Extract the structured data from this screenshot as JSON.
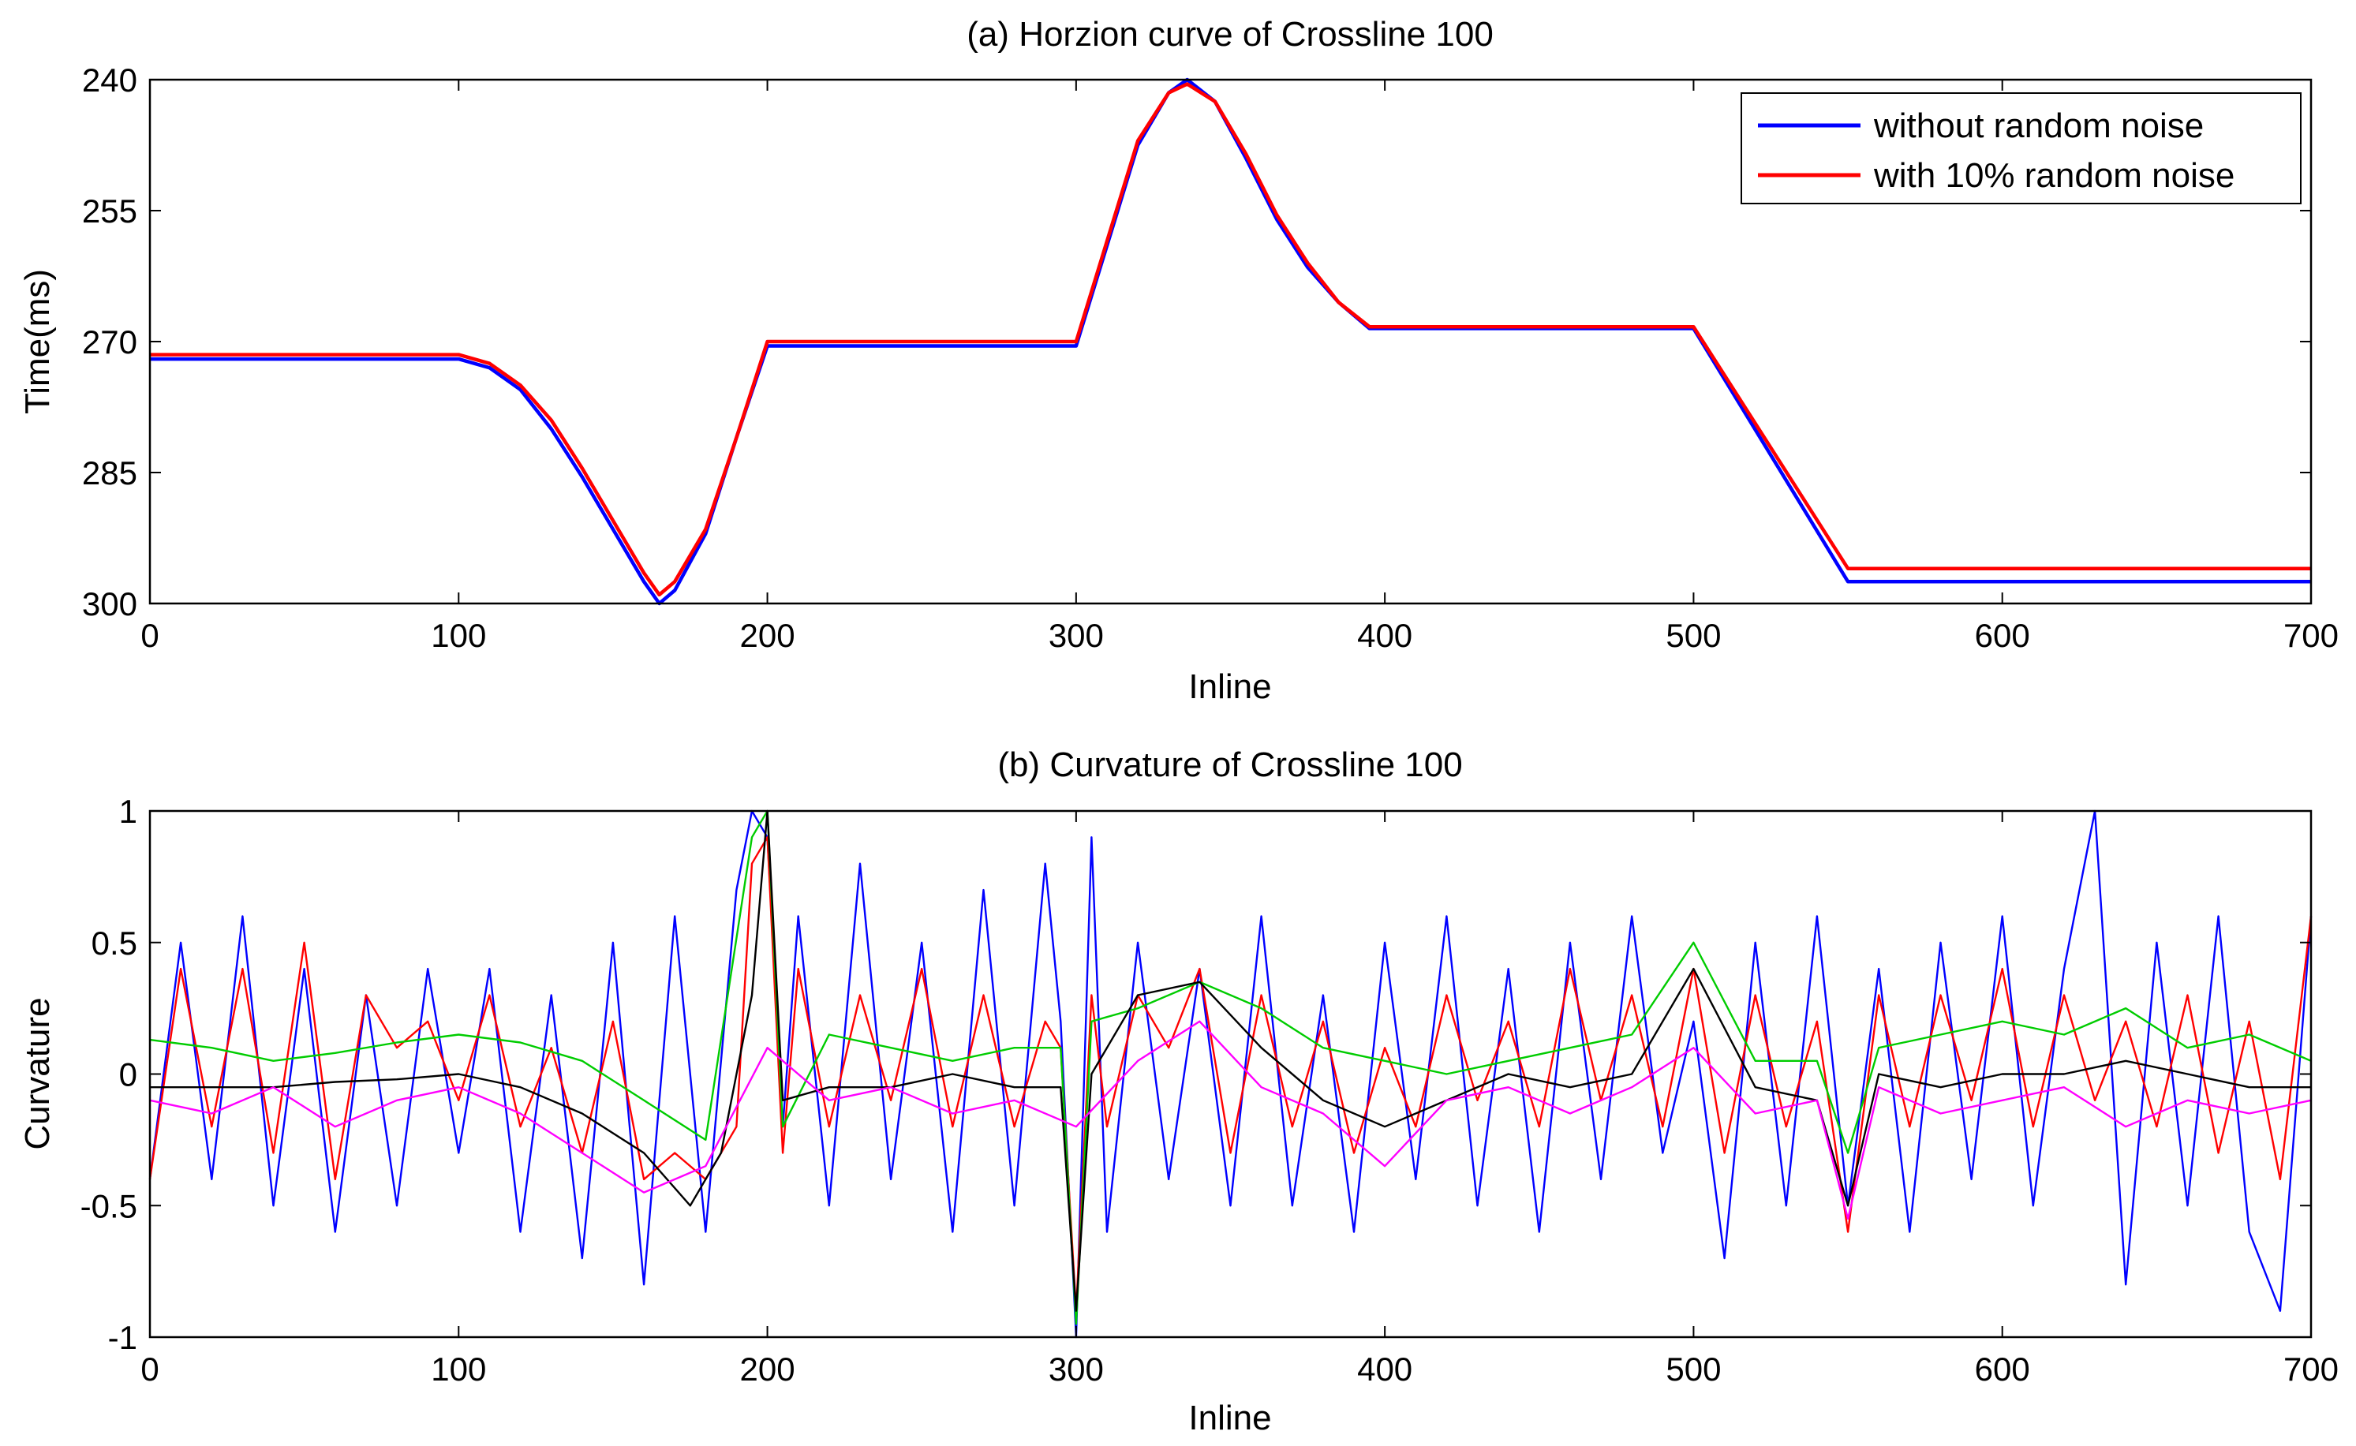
{
  "chart_data": [
    {
      "id": "a",
      "type": "line",
      "title": "(a) Horzion curve of Crossline 100",
      "xlabel": "Inline",
      "ylabel": "Time(ms)",
      "xlim": [
        0,
        700
      ],
      "ylim": [
        240,
        300
      ],
      "y_reversed": true,
      "xticks": [
        0,
        100,
        200,
        300,
        400,
        500,
        600,
        700
      ],
      "yticks": [
        240,
        255,
        270,
        285,
        300
      ],
      "legend_position": "top-right",
      "series": [
        {
          "name": "without random noise",
          "color": "#0000ff",
          "x": [
            0,
            100,
            110,
            120,
            130,
            140,
            150,
            160,
            165,
            170,
            180,
            190,
            200,
            300,
            310,
            320,
            330,
            336,
            345,
            355,
            365,
            375,
            385,
            395,
            500,
            550,
            700
          ],
          "y": [
            272,
            272,
            273,
            275.5,
            280,
            285.5,
            291.5,
            297.5,
            300,
            298.5,
            292,
            281,
            270.5,
            270.5,
            259,
            247.5,
            241.5,
            240,
            242.5,
            249,
            256,
            261.5,
            265.5,
            268.5,
            268.5,
            297.5,
            297.5
          ]
        },
        {
          "name": "with 10% random noise",
          "color": "#ff0000",
          "x": [
            0,
            100,
            110,
            120,
            130,
            140,
            150,
            160,
            165,
            170,
            180,
            190,
            200,
            300,
            310,
            320,
            330,
            336,
            345,
            355,
            365,
            375,
            385,
            395,
            500,
            550,
            700
          ],
          "y": [
            271.5,
            271.5,
            272.5,
            275,
            279,
            284.5,
            290.5,
            296.5,
            299,
            297.5,
            291.5,
            281,
            270,
            270,
            258.5,
            247,
            241.5,
            240.5,
            242.5,
            248.5,
            255.5,
            261,
            265.5,
            268.3,
            268.3,
            296,
            296
          ]
        }
      ]
    },
    {
      "id": "b",
      "type": "line",
      "title": "(b) Curvature of Crossline 100",
      "xlabel": "Inline",
      "ylabel": "Curvature",
      "xlim": [
        0,
        700
      ],
      "ylim": [
        -1,
        1
      ],
      "xticks": [
        0,
        100,
        200,
        300,
        400,
        500,
        600,
        700
      ],
      "yticks": [
        -1,
        -0.5,
        0,
        0.5,
        1
      ],
      "series": [
        {
          "name": "blue",
          "color": "#0000ff",
          "x": [
            0,
            10,
            20,
            30,
            40,
            50,
            60,
            70,
            80,
            90,
            100,
            110,
            120,
            130,
            140,
            150,
            160,
            170,
            180,
            190,
            195,
            200,
            205,
            210,
            220,
            230,
            240,
            250,
            260,
            270,
            280,
            290,
            295,
            300,
            305,
            310,
            320,
            330,
            340,
            350,
            360,
            370,
            380,
            390,
            400,
            410,
            420,
            430,
            440,
            450,
            460,
            470,
            480,
            490,
            500,
            510,
            520,
            530,
            540,
            550,
            560,
            570,
            580,
            590,
            600,
            610,
            620,
            630,
            640,
            650,
            660,
            670,
            680,
            690,
            700
          ],
          "y": [
            -0.4,
            0.5,
            -0.4,
            0.6,
            -0.5,
            0.4,
            -0.6,
            0.3,
            -0.5,
            0.4,
            -0.3,
            0.4,
            -0.6,
            0.3,
            -0.7,
            0.5,
            -0.8,
            0.6,
            -0.6,
            0.7,
            1,
            0.9,
            -0.2,
            0.6,
            -0.5,
            0.8,
            -0.4,
            0.5,
            -0.6,
            0.7,
            -0.5,
            0.8,
            0.2,
            -1,
            0.9,
            -0.6,
            0.5,
            -0.4,
            0.4,
            -0.5,
            0.6,
            -0.5,
            0.3,
            -0.6,
            0.5,
            -0.4,
            0.6,
            -0.5,
            0.4,
            -0.6,
            0.5,
            -0.4,
            0.6,
            -0.3,
            0.2,
            -0.7,
            0.5,
            -0.5,
            0.6,
            -0.5,
            0.4,
            -0.6,
            0.5,
            -0.4,
            0.6,
            -0.5,
            0.4,
            1,
            -0.8,
            0.5,
            -0.5,
            0.6,
            -0.6,
            -0.9,
            0.6
          ]
        },
        {
          "name": "red",
          "color": "#ff0000",
          "x": [
            0,
            10,
            20,
            30,
            40,
            50,
            60,
            70,
            80,
            90,
            100,
            110,
            120,
            130,
            140,
            150,
            160,
            170,
            180,
            190,
            195,
            200,
            205,
            210,
            220,
            230,
            240,
            250,
            260,
            270,
            280,
            290,
            295,
            300,
            305,
            310,
            320,
            330,
            340,
            350,
            360,
            370,
            380,
            390,
            400,
            410,
            420,
            430,
            440,
            450,
            460,
            470,
            480,
            490,
            500,
            510,
            520,
            530,
            540,
            550,
            560,
            570,
            580,
            590,
            600,
            610,
            620,
            630,
            640,
            650,
            660,
            670,
            680,
            690,
            700
          ],
          "y": [
            -0.4,
            0.4,
            -0.2,
            0.4,
            -0.3,
            0.5,
            -0.4,
            0.3,
            0.1,
            0.2,
            -0.1,
            0.3,
            -0.2,
            0.1,
            -0.3,
            0.2,
            -0.4,
            -0.3,
            -0.4,
            -0.2,
            0.8,
            0.9,
            -0.3,
            0.4,
            -0.2,
            0.3,
            -0.1,
            0.4,
            -0.2,
            0.3,
            -0.2,
            0.2,
            0.1,
            -0.9,
            0.3,
            -0.2,
            0.3,
            0.1,
            0.4,
            -0.3,
            0.3,
            -0.2,
            0.2,
            -0.3,
            0.1,
            -0.2,
            0.3,
            -0.1,
            0.2,
            -0.2,
            0.4,
            -0.1,
            0.3,
            -0.2,
            0.4,
            -0.3,
            0.3,
            -0.2,
            0.2,
            -0.6,
            0.3,
            -0.2,
            0.3,
            -0.1,
            0.4,
            -0.2,
            0.3,
            -0.1,
            0.2,
            -0.2,
            0.3,
            -0.3,
            0.2,
            -0.4,
            0.6
          ]
        },
        {
          "name": "green",
          "color": "#00cc00",
          "x": [
            0,
            20,
            40,
            60,
            80,
            100,
            120,
            140,
            160,
            180,
            195,
            200,
            205,
            220,
            240,
            260,
            280,
            295,
            300,
            305,
            320,
            340,
            360,
            380,
            400,
            420,
            440,
            460,
            480,
            500,
            520,
            540,
            550,
            560,
            580,
            600,
            620,
            640,
            660,
            680,
            700
          ],
          "y": [
            0.13,
            0.1,
            0.05,
            0.08,
            0.12,
            0.15,
            0.12,
            0.05,
            -0.1,
            -0.25,
            0.9,
            1,
            -0.2,
            0.15,
            0.1,
            0.05,
            0.1,
            0.1,
            -0.95,
            0.2,
            0.25,
            0.35,
            0.25,
            0.1,
            0.05,
            0.0,
            0.05,
            0.1,
            0.15,
            0.5,
            0.05,
            0.05,
            -0.3,
            0.1,
            0.15,
            0.2,
            0.15,
            0.25,
            0.1,
            0.15,
            0.05
          ]
        },
        {
          "name": "black",
          "color": "#000000",
          "x": [
            0,
            20,
            40,
            60,
            80,
            100,
            120,
            140,
            160,
            175,
            185,
            195,
            200,
            205,
            220,
            240,
            260,
            280,
            295,
            300,
            305,
            320,
            340,
            360,
            380,
            400,
            420,
            440,
            460,
            480,
            500,
            520,
            540,
            550,
            560,
            580,
            600,
            620,
            640,
            660,
            680,
            700
          ],
          "y": [
            -0.05,
            -0.05,
            -0.05,
            -0.03,
            -0.02,
            0.0,
            -0.05,
            -0.15,
            -0.3,
            -0.5,
            -0.3,
            0.3,
            1,
            -0.1,
            -0.05,
            -0.05,
            0.0,
            -0.05,
            -0.05,
            -0.9,
            0.0,
            0.3,
            0.35,
            0.1,
            -0.1,
            -0.2,
            -0.1,
            0.0,
            -0.05,
            0.0,
            0.4,
            -0.05,
            -0.1,
            -0.5,
            0.0,
            -0.05,
            0.0,
            0.0,
            0.05,
            0.0,
            -0.05,
            -0.05
          ]
        },
        {
          "name": "magenta",
          "color": "#ff00ff",
          "x": [
            0,
            20,
            40,
            60,
            80,
            100,
            120,
            140,
            160,
            180,
            200,
            220,
            240,
            260,
            280,
            300,
            320,
            340,
            360,
            380,
            400,
            420,
            440,
            460,
            480,
            500,
            520,
            540,
            550,
            560,
            580,
            600,
            620,
            640,
            660,
            680,
            700
          ],
          "y": [
            -0.1,
            -0.15,
            -0.05,
            -0.2,
            -0.1,
            -0.05,
            -0.15,
            -0.3,
            -0.45,
            -0.35,
            0.1,
            -0.1,
            -0.05,
            -0.15,
            -0.1,
            -0.2,
            0.05,
            0.2,
            -0.05,
            -0.15,
            -0.35,
            -0.1,
            -0.05,
            -0.15,
            -0.05,
            0.1,
            -0.15,
            -0.1,
            -0.55,
            -0.05,
            -0.15,
            -0.1,
            -0.05,
            -0.2,
            -0.1,
            -0.15,
            -0.1
          ]
        }
      ]
    }
  ]
}
